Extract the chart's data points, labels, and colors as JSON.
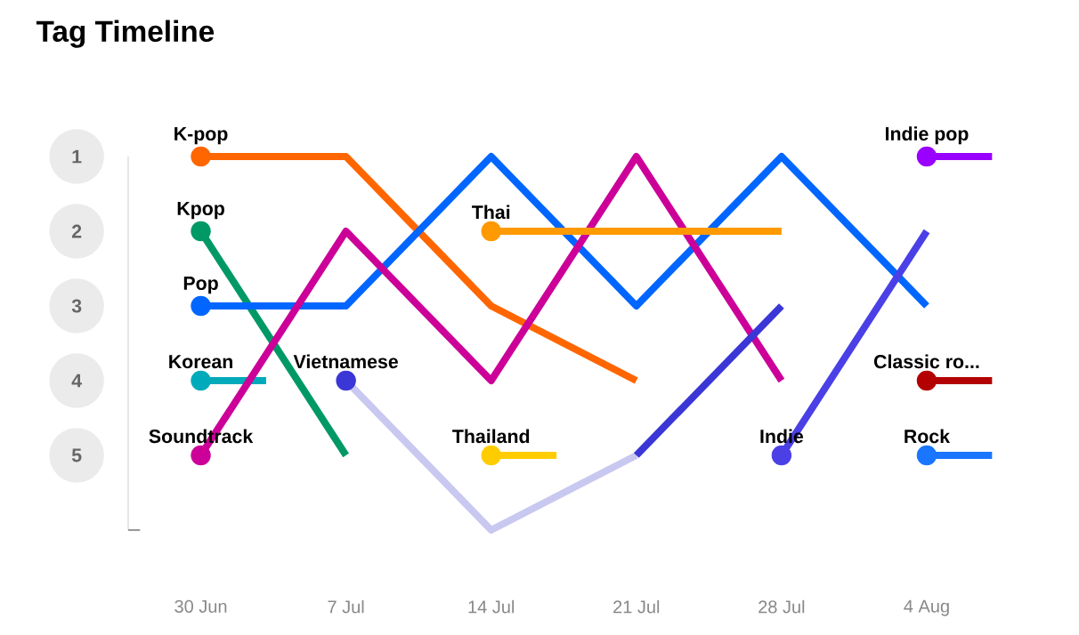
{
  "chart_data": {
    "type": "line",
    "title": "Tag Timeline",
    "categories": [
      "30 Jun",
      "7 Jul",
      "14 Jul",
      "21 Jul",
      "28 Jul",
      "4 Aug"
    ],
    "ylim": [
      6,
      1
    ],
    "yticks": [
      1,
      2,
      3,
      4,
      5,
      {
        "value": 6,
        "label": null
      }
    ],
    "series": [
      {
        "name": "K-pop",
        "color": "#ff6600",
        "values": [
          1,
          1,
          3,
          4,
          null,
          null
        ]
      },
      {
        "name": "Kpop",
        "color": "#009966",
        "values": [
          2,
          5,
          null,
          null,
          null,
          null
        ]
      },
      {
        "name": "Pop",
        "color": "#0066ff",
        "values": [
          3,
          3,
          1,
          3,
          1,
          3
        ]
      },
      {
        "name": "Korean",
        "color": "#00aabb",
        "marker": "circle",
        "values": [
          4,
          null,
          null,
          null,
          null,
          null
        ]
      },
      {
        "name": "Soundtrack",
        "color": "#cc0099",
        "values": [
          5,
          2,
          4,
          1,
          4,
          null
        ]
      },
      {
        "color": "#c8c8f0",
        "values": [
          null,
          4,
          6,
          5,
          null,
          null
        ]
      },
      {
        "name": "Vietnamese",
        "color": "#3b36d6",
        "values": [
          null,
          4,
          null,
          5,
          3,
          null
        ]
      },
      {
        "name": "Thai",
        "color": "#ff9900",
        "values": [
          null,
          null,
          2,
          2,
          2,
          null
        ]
      },
      {
        "name": "Thailand",
        "color": "#ffcc00",
        "marker": "circle",
        "values": [
          null,
          null,
          5,
          null,
          null,
          null
        ]
      },
      {
        "name": "Indie",
        "color": "#4a40e6",
        "values": [
          null,
          null,
          null,
          null,
          5,
          2
        ]
      },
      {
        "name": "Indie pop",
        "color": "#9900ff",
        "marker": "circle",
        "values": [
          null,
          null,
          null,
          null,
          null,
          1
        ]
      },
      {
        "name": "Classic ro...",
        "color": "#b30000",
        "marker": "circle",
        "values": [
          null,
          null,
          null,
          null,
          null,
          4
        ]
      },
      {
        "name": "Rock",
        "color": "#1a75ff",
        "marker": "circle",
        "values": [
          null,
          null,
          null,
          null,
          null,
          5
        ]
      }
    ]
  }
}
